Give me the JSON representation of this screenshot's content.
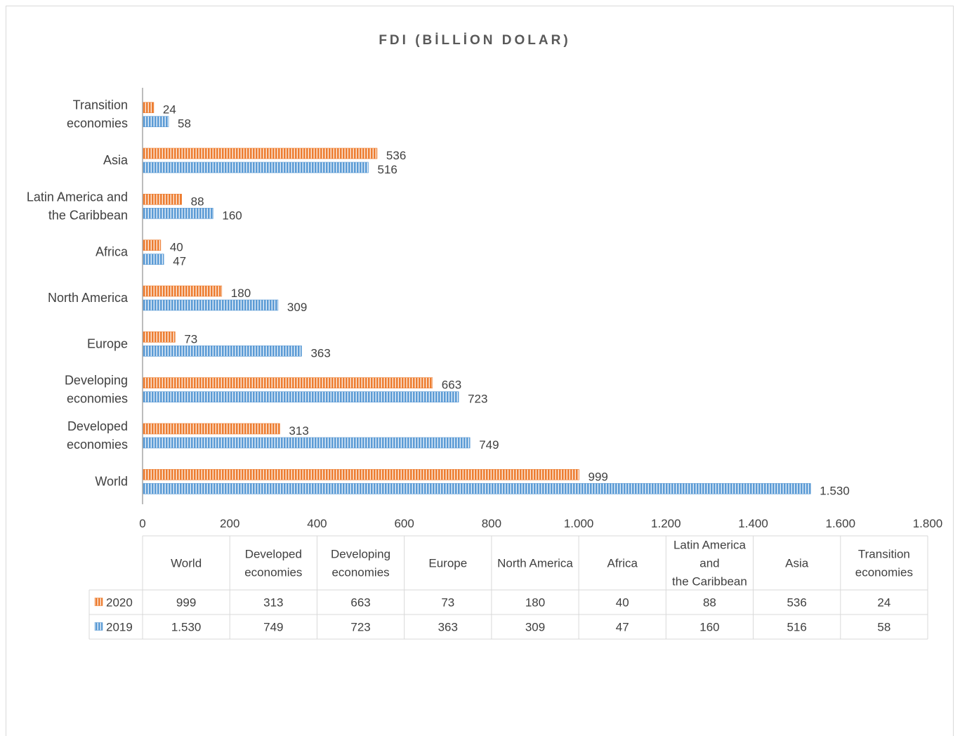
{
  "chart_data": {
    "type": "bar",
    "orientation": "horizontal",
    "title": "FDI (BİLLİON DOLAR)",
    "categories": [
      "World",
      "Developed economies",
      "Developing economies",
      "Europe",
      "North America",
      "Africa",
      "Latin America and the Caribbean",
      "Asia",
      "Transition economies"
    ],
    "category_label_lines": [
      [
        "World"
      ],
      [
        "Developed",
        "economies"
      ],
      [
        "Developing",
        "economies"
      ],
      [
        "Europe"
      ],
      [
        "North America"
      ],
      [
        "Africa"
      ],
      [
        "Latin America and",
        "the Caribbean"
      ],
      [
        "Asia"
      ],
      [
        "Transition",
        "economies"
      ]
    ],
    "table_header_lines": [
      [
        "World"
      ],
      [
        "Developed",
        "economies"
      ],
      [
        "Developing",
        "economies"
      ],
      [
        "Europe"
      ],
      [
        "North America"
      ],
      [
        "Africa"
      ],
      [
        "Latin America",
        "and",
        "the Caribbean"
      ],
      [
        "Asia"
      ],
      [
        "Transition",
        "economies"
      ]
    ],
    "series": [
      {
        "name": "2020",
        "color": "#ed7d31",
        "values": [
          999,
          313,
          663,
          73,
          180,
          40,
          88,
          536,
          24
        ],
        "labels": [
          "999",
          "313",
          "663",
          "73",
          "180",
          "40",
          "88",
          "536",
          "24"
        ]
      },
      {
        "name": "2019",
        "color": "#5b9bd5",
        "values": [
          1530,
          749,
          723,
          363,
          309,
          47,
          160,
          516,
          58
        ],
        "labels": [
          "1.530",
          "749",
          "723",
          "363",
          "309",
          "47",
          "160",
          "516",
          "58"
        ]
      }
    ],
    "xlim": [
      0,
      1800
    ],
    "xticks": [
      0,
      200,
      400,
      600,
      800,
      1000,
      1200,
      1400,
      1600,
      1800
    ],
    "xtick_labels": [
      "0",
      "200",
      "400",
      "600",
      "800",
      "1.000",
      "1.200",
      "1.400",
      "1.600",
      "1.800"
    ],
    "grid": false,
    "legend": "data-table-below",
    "bar_pattern": "vertical-stripes"
  }
}
